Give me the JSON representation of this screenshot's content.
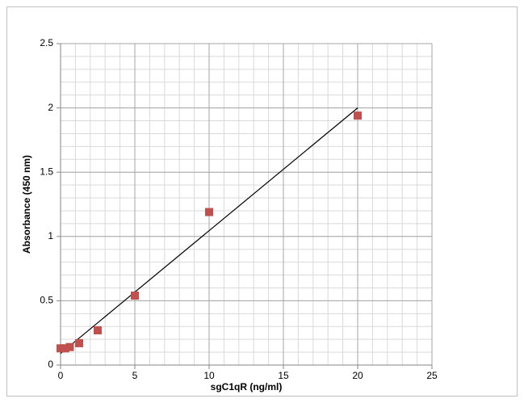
{
  "chart_data": {
    "type": "scatter",
    "xlabel": "sgC1qR (ng/ml)",
    "ylabel": "Absorbance  (450 nm)",
    "x": [
      0,
      0.3125,
      0.625,
      1.25,
      2.5,
      5,
      10,
      20
    ],
    "series": [
      {
        "color": "#c0504d",
        "values": [
          0.13,
          0.13,
          0.14,
          0.17,
          0.27,
          0.54,
          1.19,
          1.94
        ]
      }
    ],
    "trendline": {
      "color": "#000000",
      "x": [
        0,
        20
      ],
      "values": [
        0.09,
        2.0
      ]
    },
    "xlim": [
      0,
      25
    ],
    "xticks": [
      0,
      5,
      10,
      15,
      20,
      25
    ],
    "ylim": [
      0,
      2.5
    ],
    "yticks": [
      0,
      0.5,
      1,
      1.5,
      2,
      2.5
    ],
    "grid": true,
    "minor_grid": {
      "x": 1,
      "y": 0.1
    }
  }
}
